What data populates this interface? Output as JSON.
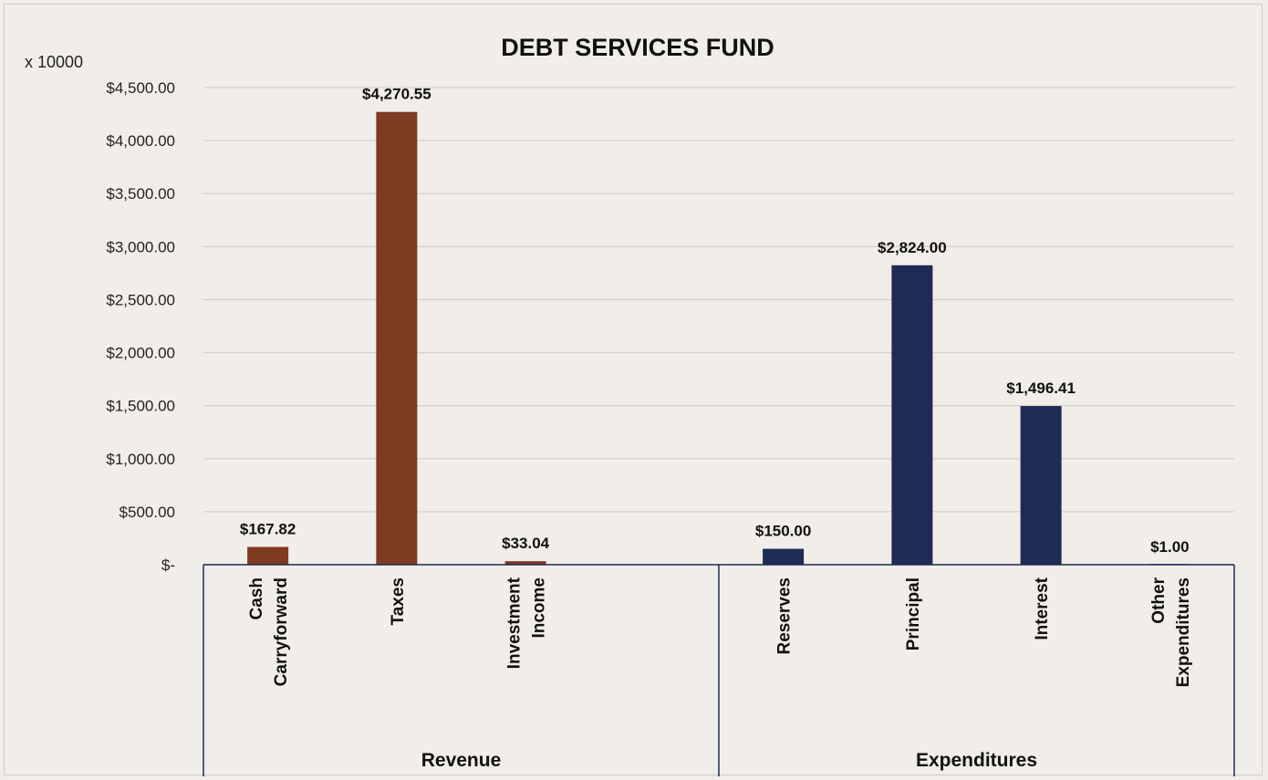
{
  "chart_data": {
    "type": "bar",
    "title": "DEBT SERVICES FUND",
    "unit_note": "x 10000",
    "ylim": [
      0,
      4500
    ],
    "yticks": [
      0,
      500,
      1000,
      1500,
      2000,
      2500,
      3000,
      3500,
      4000,
      4500
    ],
    "ytick_labels": [
      "$-",
      "$500.00",
      "$1,000.00",
      "$1,500.00",
      "$2,000.00",
      "$2,500.00",
      "$3,000.00",
      "$3,500.00",
      "$4,000.00",
      "$4,500.00"
    ],
    "grid": true,
    "groups": [
      {
        "name": "Revenue",
        "color": "#7f3a22",
        "categories": [
          {
            "label": [
              "Cash",
              "Carryforward"
            ],
            "value": 167.82,
            "value_label": "$167.82"
          },
          {
            "label": [
              "Taxes"
            ],
            "value": 4270.55,
            "value_label": "$4,270.55"
          },
          {
            "label": [
              "Investment",
              "Income"
            ],
            "value": 33.04,
            "value_label": "$33.04"
          },
          {
            "label": [],
            "value": null,
            "value_label": ""
          }
        ]
      },
      {
        "name": "Expenditures",
        "color": "#1f2a55",
        "categories": [
          {
            "label": [
              "Reserves"
            ],
            "value": 150.0,
            "value_label": "$150.00"
          },
          {
            "label": [
              "Principal"
            ],
            "value": 2824.0,
            "value_label": "$2,824.00"
          },
          {
            "label": [
              "Interest"
            ],
            "value": 1496.41,
            "value_label": "$1,496.41"
          },
          {
            "label": [
              "Other",
              "Expenditures"
            ],
            "value": 1.0,
            "value_label": "$1.00"
          }
        ]
      }
    ]
  }
}
